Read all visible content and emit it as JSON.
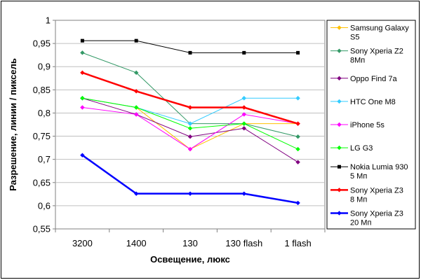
{
  "chart_data": {
    "type": "line",
    "title": "",
    "xlabel": "Освещение, люкс",
    "ylabel": "Разрешение, линии / пиксель",
    "categories": [
      "3200",
      "1400",
      "130",
      "130 flash",
      "1 flash"
    ],
    "ylim": [
      0.55,
      1
    ],
    "yticks": [
      "0,55",
      "0,6",
      "0,65",
      "0,7",
      "0,75",
      "0,8",
      "0,85",
      "0,9",
      "0,95",
      "1"
    ],
    "ytick_values": [
      0.55,
      0.6,
      0.65,
      0.7,
      0.75,
      0.8,
      0.85,
      0.9,
      0.95,
      1.0
    ],
    "grid": "horizontal",
    "legend_position": "right",
    "series": [
      {
        "name": "Samsung Galaxy S5",
        "name_lines": [
          "Samsung Galaxy",
          "S5"
        ],
        "color": "#ffc000",
        "marker": "diamond",
        "values": [
          0.832,
          0.812,
          0.722,
          0.777,
          0.777
        ]
      },
      {
        "name": "Sony Xperia Z2 8Мп",
        "name_lines": [
          "Sony Xperia Z2",
          "8Мп"
        ],
        "color": "#339966",
        "marker": "diamond",
        "values": [
          0.93,
          0.887,
          0.777,
          0.777,
          0.749
        ]
      },
      {
        "name": "Oppo Find 7a",
        "name_lines": [
          "Oppo Find 7a"
        ],
        "color": "#800080",
        "marker": "diamond",
        "values": [
          0.832,
          0.797,
          0.749,
          0.767,
          0.694
        ]
      },
      {
        "name": "HTC One M8",
        "name_lines": [
          "HTC One M8"
        ],
        "color": "#33ccff",
        "marker": "diamond",
        "values": [
          0.832,
          0.812,
          0.777,
          0.832,
          0.832
        ]
      },
      {
        "name": "iPhone 5s",
        "name_lines": [
          "iPhone 5s"
        ],
        "color": "#ff00ff",
        "marker": "diamond",
        "values": [
          0.812,
          0.797,
          0.722,
          0.797,
          0.777
        ]
      },
      {
        "name": "LG G3",
        "name_lines": [
          "LG G3"
        ],
        "color": "#00ff00",
        "marker": "diamond",
        "values": [
          0.832,
          0.812,
          0.767,
          0.777,
          0.722
        ]
      },
      {
        "name": "Nokia Lumia 930 5 Мп",
        "name_lines": [
          "Nokia Lumia 930",
          "5 Мп"
        ],
        "color": "#000000",
        "marker": "square",
        "values": [
          0.956,
          0.956,
          0.93,
          0.93,
          0.93
        ]
      },
      {
        "name": "Sony Xperia Z3 8 Мп",
        "name_lines": [
          "Sony Xperia Z3",
          "8 Мп"
        ],
        "color": "#ff0000",
        "marker": "diamond",
        "bold": true,
        "values": [
          0.887,
          0.847,
          0.812,
          0.812,
          0.777
        ]
      },
      {
        "name": "Sony Xperia Z3 20 Мп",
        "name_lines": [
          "Sony Xperia Z3",
          "20 Мп"
        ],
        "color": "#0000ff",
        "marker": "diamond",
        "bold": true,
        "values": [
          0.709,
          0.626,
          0.626,
          0.626,
          0.606
        ]
      }
    ]
  }
}
